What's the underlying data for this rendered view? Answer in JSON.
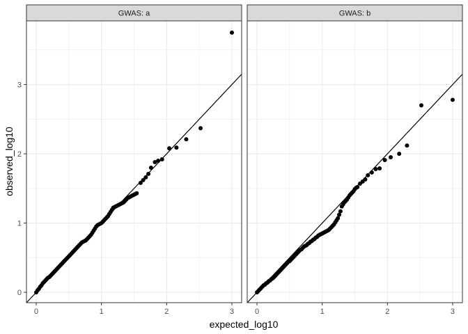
{
  "chart_data": {
    "type": "scatter",
    "xlabel": "expected_log10",
    "ylabel": "observed_log10",
    "xlim": [
      -0.15,
      3.15
    ],
    "ylim": [
      -0.15,
      3.92
    ],
    "x_ticks": [
      0,
      1,
      2,
      3
    ],
    "y_ticks": [
      0,
      1,
      2,
      3
    ],
    "grid": true,
    "reference_line": {
      "slope": 1,
      "intercept": 0
    },
    "colors": {
      "points": "#000000",
      "strip_bg": "#d9d9d9",
      "grid": "#ebebeb",
      "panel_border": "#333333"
    },
    "facets": [
      {
        "title": "GWAS: a",
        "series": [
          {
            "x": [
              0.0,
              0.02,
              0.04,
              0.06,
              0.08,
              0.1,
              0.12,
              0.14,
              0.16,
              0.18,
              0.2,
              0.22,
              0.24,
              0.26,
              0.28,
              0.3,
              0.32,
              0.34,
              0.36,
              0.38,
              0.4,
              0.42,
              0.44,
              0.46,
              0.48,
              0.5,
              0.52,
              0.54,
              0.56,
              0.58,
              0.6,
              0.62,
              0.64,
              0.66,
              0.68,
              0.7,
              0.72,
              0.74,
              0.76,
              0.78,
              0.8,
              0.82,
              0.84,
              0.86,
              0.88,
              0.9,
              0.92,
              0.94,
              0.96,
              0.98,
              1.0,
              1.02,
              1.04,
              1.06,
              1.08,
              1.1,
              1.12,
              1.14,
              1.16,
              1.18,
              1.2,
              1.22,
              1.24,
              1.26,
              1.28,
              1.3,
              1.32,
              1.34,
              1.36,
              1.38,
              1.4,
              1.42,
              1.44,
              1.46,
              1.48,
              1.5,
              1.52,
              1.54,
              1.6,
              1.64,
              1.68,
              1.72,
              1.76,
              1.82,
              1.87,
              1.93,
              2.04,
              2.15,
              2.3,
              2.52,
              3.0
            ],
            "y": [
              0.0,
              0.03,
              0.05,
              0.08,
              0.1,
              0.13,
              0.15,
              0.17,
              0.19,
              0.21,
              0.22,
              0.24,
              0.26,
              0.28,
              0.3,
              0.32,
              0.34,
              0.36,
              0.38,
              0.4,
              0.42,
              0.44,
              0.46,
              0.48,
              0.5,
              0.52,
              0.54,
              0.56,
              0.58,
              0.6,
              0.62,
              0.64,
              0.66,
              0.68,
              0.7,
              0.72,
              0.73,
              0.74,
              0.75,
              0.77,
              0.79,
              0.81,
              0.83,
              0.86,
              0.89,
              0.92,
              0.95,
              0.97,
              0.98,
              0.99,
              1.0,
              1.02,
              1.04,
              1.06,
              1.08,
              1.1,
              1.13,
              1.16,
              1.19,
              1.22,
              1.23,
              1.24,
              1.25,
              1.26,
              1.27,
              1.28,
              1.29,
              1.3,
              1.32,
              1.34,
              1.36,
              1.37,
              1.38,
              1.39,
              1.4,
              1.41,
              1.42,
              1.43,
              1.58,
              1.62,
              1.66,
              1.71,
              1.8,
              1.88,
              1.9,
              1.92,
              2.08,
              2.09,
              2.21,
              2.37,
              3.75
            ]
          }
        ]
      },
      {
        "title": "GWAS: b",
        "series": [
          {
            "x": [
              0.0,
              0.02,
              0.04,
              0.06,
              0.08,
              0.1,
              0.12,
              0.14,
              0.16,
              0.18,
              0.2,
              0.22,
              0.24,
              0.26,
              0.28,
              0.3,
              0.32,
              0.34,
              0.36,
              0.38,
              0.4,
              0.42,
              0.44,
              0.46,
              0.48,
              0.5,
              0.52,
              0.54,
              0.56,
              0.58,
              0.6,
              0.62,
              0.64,
              0.66,
              0.68,
              0.7,
              0.72,
              0.74,
              0.76,
              0.78,
              0.8,
              0.82,
              0.84,
              0.86,
              0.88,
              0.9,
              0.92,
              0.94,
              0.96,
              0.98,
              1.0,
              1.02,
              1.04,
              1.06,
              1.08,
              1.1,
              1.12,
              1.14,
              1.16,
              1.18,
              1.2,
              1.22,
              1.24,
              1.26,
              1.28,
              1.3,
              1.32,
              1.34,
              1.36,
              1.38,
              1.4,
              1.42,
              1.44,
              1.46,
              1.48,
              1.5,
              1.52,
              1.54,
              1.58,
              1.62,
              1.66,
              1.7,
              1.76,
              1.82,
              1.88,
              1.96,
              2.05,
              2.18,
              2.3,
              2.52,
              3.0
            ],
            "y": [
              0.0,
              0.02,
              0.04,
              0.06,
              0.08,
              0.1,
              0.11,
              0.13,
              0.14,
              0.16,
              0.17,
              0.19,
              0.2,
              0.22,
              0.24,
              0.26,
              0.28,
              0.3,
              0.32,
              0.34,
              0.36,
              0.38,
              0.4,
              0.42,
              0.44,
              0.45,
              0.47,
              0.49,
              0.51,
              0.53,
              0.55,
              0.57,
              0.59,
              0.61,
              0.62,
              0.64,
              0.66,
              0.67,
              0.68,
              0.7,
              0.71,
              0.73,
              0.74,
              0.76,
              0.77,
              0.79,
              0.8,
              0.82,
              0.83,
              0.84,
              0.85,
              0.86,
              0.87,
              0.88,
              0.89,
              0.9,
              0.92,
              0.94,
              0.96,
              0.98,
              1.01,
              1.04,
              1.07,
              1.12,
              1.17,
              1.24,
              1.27,
              1.3,
              1.32,
              1.34,
              1.37,
              1.4,
              1.42,
              1.44,
              1.46,
              1.49,
              1.51,
              1.52,
              1.57,
              1.6,
              1.63,
              1.69,
              1.73,
              1.78,
              1.79,
              1.91,
              1.95,
              2.0,
              2.12,
              2.7,
              2.78
            ]
          }
        ]
      }
    ]
  }
}
